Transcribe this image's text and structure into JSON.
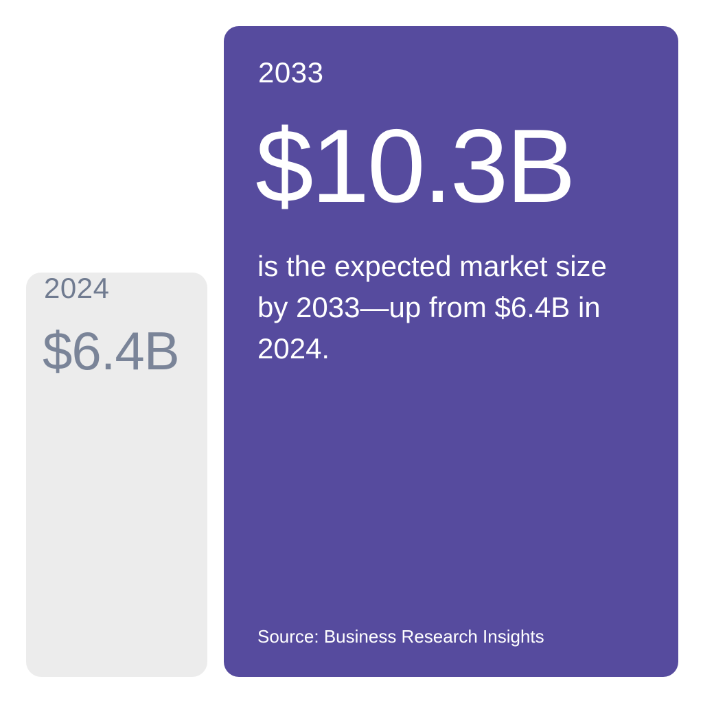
{
  "chart_data": {
    "type": "bar",
    "categories": [
      "2024",
      "2033"
    ],
    "values": [
      6.4,
      10.3
    ],
    "value_labels": [
      "$6.4B",
      "$10.3B"
    ],
    "units": "$B",
    "title": "",
    "xlabel": "",
    "ylabel": "",
    "grid": false,
    "legend": "none",
    "annotation": "is the expected market size by 2033—up from $6.4B in 2024.",
    "source": "Source: Business Research Insights",
    "colors": {
      "bar_2024": "#ececec",
      "bar_2033": "#564b9e",
      "label_2024": "#707b90",
      "label_2033": "#ffffff"
    }
  }
}
